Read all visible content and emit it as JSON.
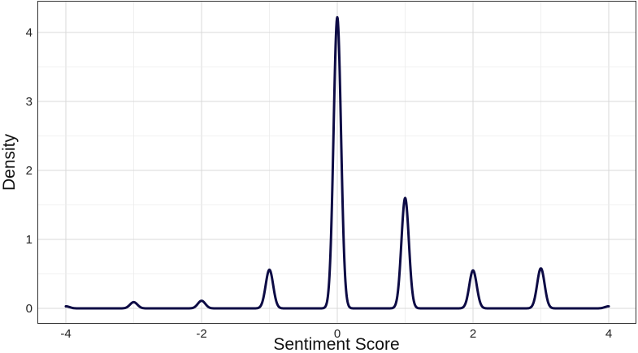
{
  "chart_data": {
    "type": "line",
    "title": "",
    "xlabel": "Sentiment Score",
    "ylabel": "Density",
    "xlim": [
      -4,
      4
    ],
    "ylim": [
      0,
      4.2
    ],
    "x_ticks": [
      -4,
      -2,
      0,
      2,
      4
    ],
    "y_ticks": [
      0,
      1,
      2,
      3,
      4
    ],
    "x_tick_labels": [
      "-4",
      "-2",
      "0",
      "2",
      "4"
    ],
    "y_tick_labels": [
      "0",
      "1",
      "2",
      "3",
      "4"
    ],
    "grid": true,
    "legend": "none",
    "line_color": "#0d0b45",
    "series": [
      {
        "peaks": [
          {
            "x": -4,
            "density": 0.03
          },
          {
            "x": -3,
            "density": 0.09
          },
          {
            "x": -2,
            "density": 0.11
          },
          {
            "x": -1,
            "density": 0.56
          },
          {
            "x": 0,
            "density": 4.22
          },
          {
            "x": 1,
            "density": 1.6
          },
          {
            "x": 2,
            "density": 0.55
          },
          {
            "x": 3,
            "density": 0.58
          },
          {
            "x": 4,
            "density": 0.03
          }
        ]
      }
    ]
  }
}
